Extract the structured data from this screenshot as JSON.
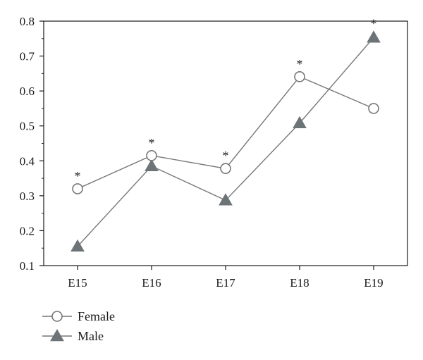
{
  "chart_data": {
    "type": "line",
    "categories": [
      "E15",
      "E16",
      "E17",
      "E18",
      "E19"
    ],
    "series": [
      {
        "name": "Female",
        "values": [
          0.32,
          0.415,
          0.378,
          0.641,
          0.55
        ],
        "marker": "circle-open",
        "significance": [
          "*",
          "*",
          "*",
          "*",
          ""
        ]
      },
      {
        "name": "Male",
        "values": [
          0.155,
          0.385,
          0.287,
          0.508,
          0.753
        ],
        "marker": "triangle-filled",
        "significance": [
          "",
          "",
          "",
          "",
          "*"
        ]
      }
    ],
    "ylim": [
      0.1,
      0.8
    ],
    "yticks": [
      "0.1",
      "0.2",
      "0.3",
      "0.4",
      "0.5",
      "0.6",
      "0.7",
      "0.8"
    ],
    "grid": false,
    "legend_position": "bottom-left"
  },
  "colors": {
    "line": "#777777",
    "female_fill": "#ffffff",
    "male_fill": "#6d7478",
    "axis": "#1a1a1a"
  }
}
